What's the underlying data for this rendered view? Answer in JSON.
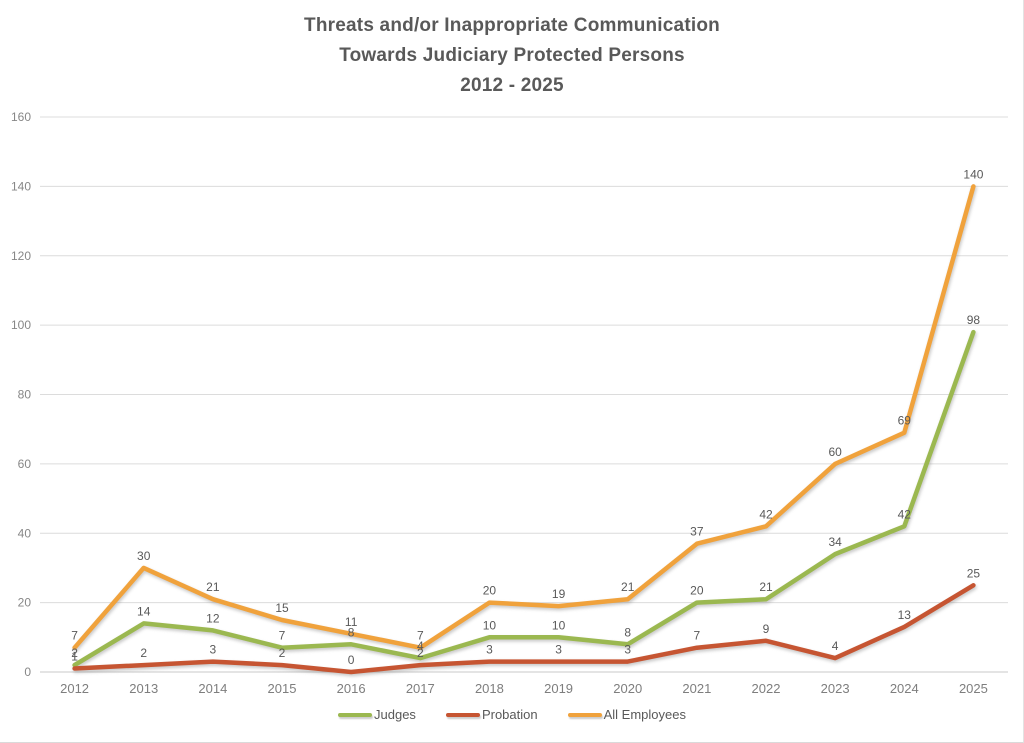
{
  "title": {
    "line1": "Threats and/or Inappropriate Communication",
    "line2": "Towards Judiciary Protected Persons",
    "line3": "2012 - 2025"
  },
  "chart_data": {
    "type": "line",
    "title": "Threats and/or Inappropriate Communication Towards Judiciary Protected Persons 2012 - 2025",
    "categories": [
      "2012",
      "2013",
      "2014",
      "2015",
      "2016",
      "2017",
      "2018",
      "2019",
      "2020",
      "2021",
      "2022",
      "2023",
      "2024",
      "2025"
    ],
    "series": [
      {
        "name": "Judges",
        "color": "#9BB850",
        "values": [
          2,
          14,
          12,
          7,
          8,
          4,
          10,
          10,
          8,
          20,
          21,
          34,
          42,
          98
        ]
      },
      {
        "name": "Probation",
        "color": "#C65532",
        "values": [
          1,
          2,
          3,
          2,
          0,
          2,
          3,
          3,
          3,
          7,
          9,
          4,
          13,
          25
        ]
      },
      {
        "name": "All Employees",
        "color": "#F0A23C",
        "values": [
          7,
          30,
          21,
          15,
          11,
          7,
          20,
          19,
          21,
          37,
          42,
          60,
          69,
          140
        ]
      }
    ],
    "ylim": [
      0,
      160
    ],
    "ytick_step": 20,
    "ytick_labels": [
      "0",
      "20",
      "40",
      "60",
      "80",
      "100",
      "120",
      "140",
      "160"
    ],
    "xlabel": "",
    "ylabel": "",
    "grid": true,
    "data_labels": true,
    "legend_position": "bottom"
  },
  "colors": {
    "title_text": "#595959",
    "tick_text": "#7e7e7e",
    "data_label_text": "#595959",
    "gridline": "#dcdcdc"
  }
}
